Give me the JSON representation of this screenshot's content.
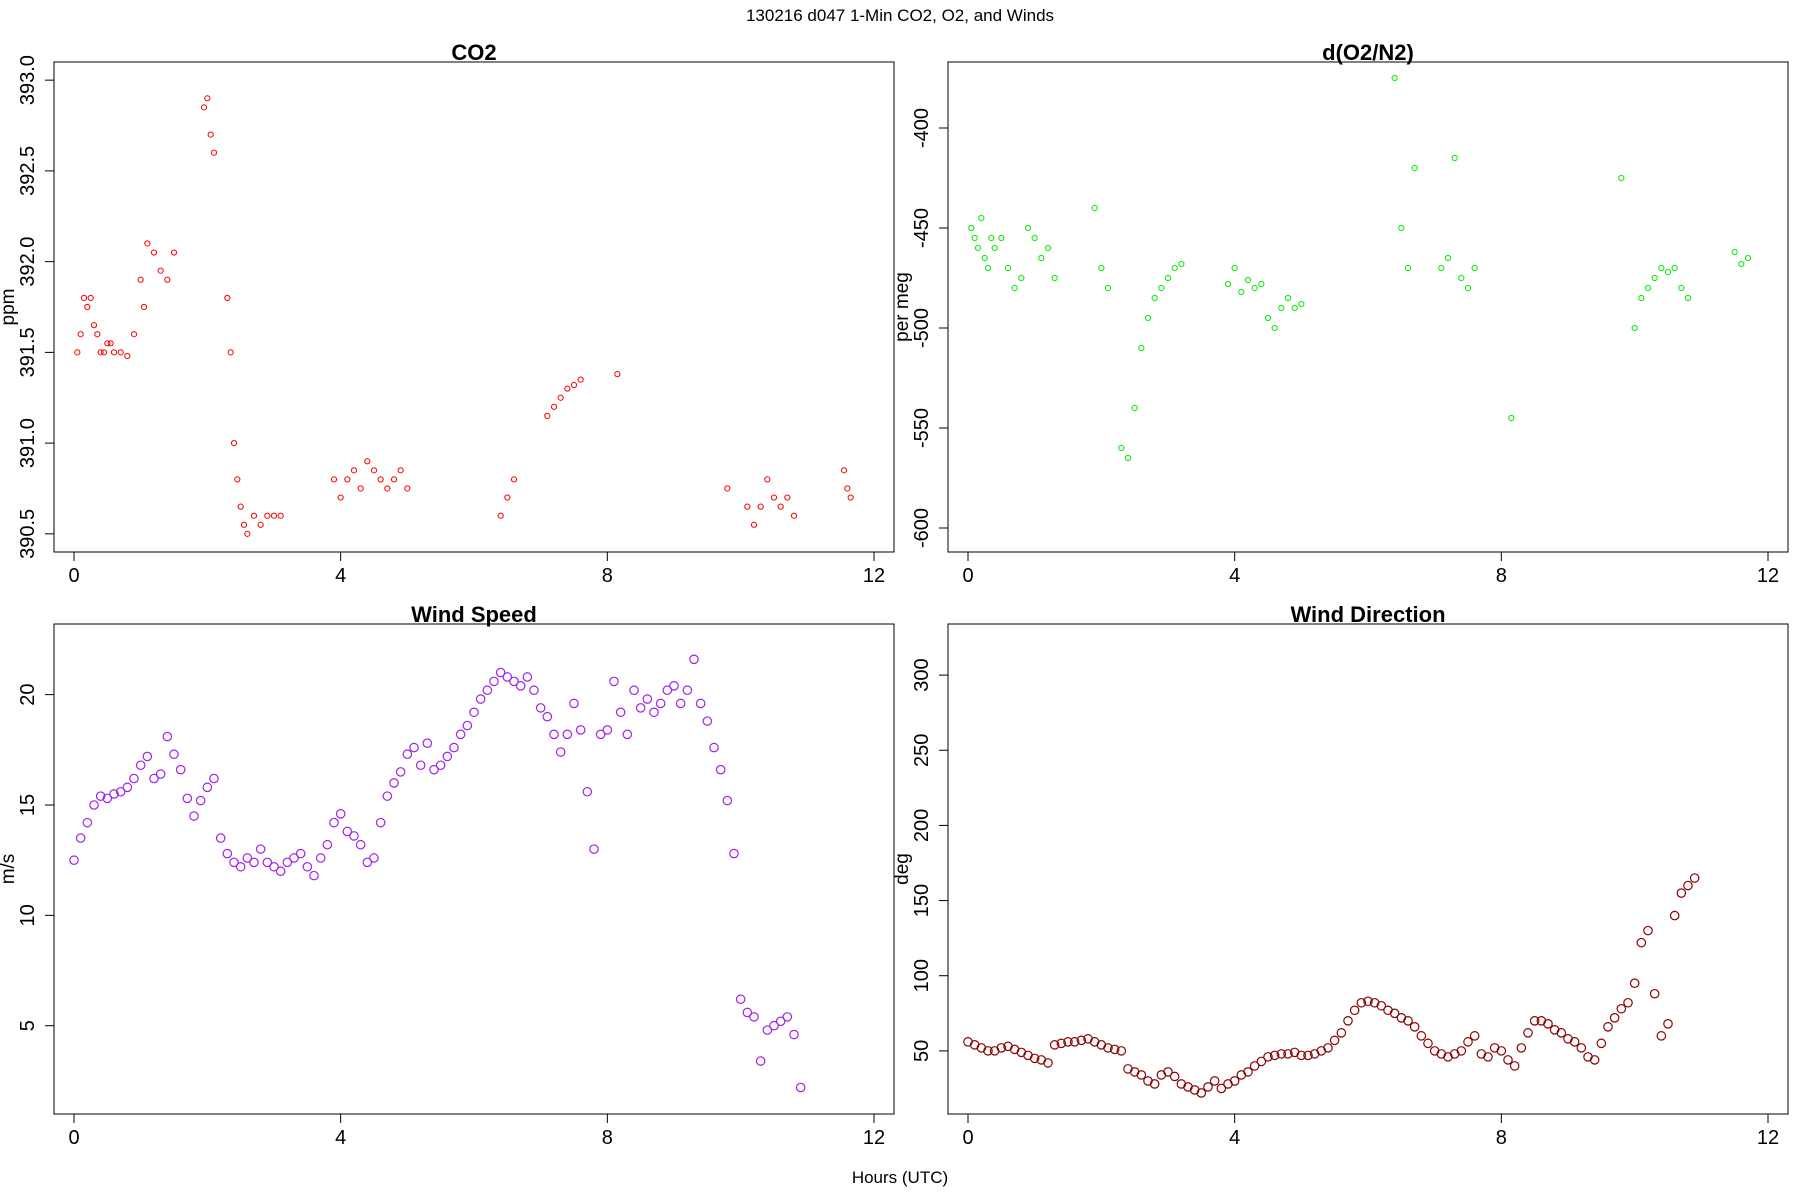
{
  "figure": {
    "suptitle": "130216   d047   1-Min CO2, O2, and Winds",
    "xlabel": "Hours (UTC)"
  },
  "chart_data": [
    {
      "id": "co2",
      "type": "scatter",
      "title": "CO2",
      "ylabel": "ppm",
      "xlabel": "",
      "xlim": [
        -0.3,
        12.3
      ],
      "ylim": [
        390.4,
        393.1
      ],
      "xticks": [
        "0",
        "4",
        "8",
        "12"
      ],
      "yticks": [
        "390.5",
        "391.0",
        "391.5",
        "392.0",
        "392.5",
        "393.0"
      ],
      "marker_color": "#ff0000",
      "x": [
        0.05,
        0.1,
        0.15,
        0.2,
        0.25,
        0.3,
        0.35,
        0.4,
        0.45,
        0.5,
        0.55,
        0.6,
        0.7,
        0.8,
        0.9,
        1.0,
        1.05,
        1.1,
        1.2,
        1.3,
        1.4,
        1.5,
        1.95,
        2.0,
        2.05,
        2.1,
        2.3,
        2.35,
        2.4,
        2.45,
        2.5,
        2.55,
        2.6,
        2.7,
        2.8,
        2.9,
        3.0,
        3.1,
        3.9,
        4.0,
        4.1,
        4.2,
        4.3,
        4.4,
        4.5,
        4.6,
        4.7,
        4.8,
        4.9,
        5.0,
        6.4,
        6.5,
        6.6,
        7.1,
        7.2,
        7.3,
        7.4,
        7.5,
        7.6,
        8.15,
        9.8,
        10.1,
        10.2,
        10.3,
        10.4,
        10.5,
        10.6,
        10.7,
        10.8,
        11.55,
        11.6,
        11.65
      ],
      "y": [
        391.5,
        391.6,
        391.8,
        391.75,
        391.8,
        391.65,
        391.6,
        391.5,
        391.5,
        391.55,
        391.55,
        391.5,
        391.5,
        391.48,
        391.6,
        391.9,
        391.75,
        392.1,
        392.05,
        391.95,
        391.9,
        392.05,
        392.85,
        392.9,
        392.7,
        392.6,
        391.8,
        391.5,
        391.0,
        390.8,
        390.65,
        390.55,
        390.5,
        390.6,
        390.55,
        390.6,
        390.6,
        390.6,
        390.8,
        390.7,
        390.8,
        390.85,
        390.75,
        390.9,
        390.85,
        390.8,
        390.75,
        390.8,
        390.85,
        390.75,
        390.6,
        390.7,
        390.8,
        391.15,
        391.2,
        391.25,
        391.3,
        391.32,
        391.35,
        391.38,
        390.75,
        390.65,
        390.55,
        390.65,
        390.8,
        390.7,
        390.65,
        390.7,
        390.6,
        390.85,
        390.75,
        390.7
      ]
    },
    {
      "id": "o2",
      "type": "scatter",
      "title": "d(O2/N2)",
      "ylabel": "per meg",
      "xlabel": "",
      "xlim": [
        -0.3,
        12.3
      ],
      "ylim": [
        -612,
        -367
      ],
      "xticks": [
        "0",
        "4",
        "8",
        "12"
      ],
      "yticks": [
        "-600",
        "-550",
        "-500",
        "-450",
        "-400"
      ],
      "marker_color": "#00ee00",
      "x": [
        0.05,
        0.1,
        0.15,
        0.2,
        0.25,
        0.3,
        0.35,
        0.4,
        0.5,
        0.6,
        0.7,
        0.8,
        0.9,
        1.0,
        1.1,
        1.2,
        1.3,
        1.9,
        2.0,
        2.1,
        2.3,
        2.4,
        2.5,
        2.6,
        2.7,
        2.8,
        2.9,
        3.0,
        3.1,
        3.2,
        3.9,
        4.0,
        4.1,
        4.2,
        4.3,
        4.4,
        4.5,
        4.6,
        4.7,
        4.8,
        4.9,
        5.0,
        6.4,
        6.5,
        6.6,
        6.7,
        7.1,
        7.2,
        7.3,
        7.4,
        7.5,
        7.6,
        8.15,
        9.8,
        10.0,
        10.1,
        10.2,
        10.3,
        10.4,
        10.5,
        10.6,
        10.7,
        10.8,
        11.5,
        11.6,
        11.7
      ],
      "y": [
        -450,
        -455,
        -460,
        -445,
        -465,
        -470,
        -455,
        -460,
        -455,
        -470,
        -480,
        -475,
        -450,
        -455,
        -465,
        -460,
        -475,
        -440,
        -470,
        -480,
        -560,
        -565,
        -540,
        -510,
        -495,
        -485,
        -480,
        -475,
        -470,
        -468,
        -478,
        -470,
        -482,
        -476,
        -480,
        -478,
        -495,
        -500,
        -490,
        -485,
        -490,
        -488,
        -375,
        -450,
        -470,
        -420,
        -470,
        -465,
        -415,
        -475,
        -480,
        -470,
        -545,
        -425,
        -500,
        -485,
        -480,
        -475,
        -470,
        -472,
        -470,
        -480,
        -485,
        -462,
        -468,
        -465
      ]
    },
    {
      "id": "wind_speed",
      "type": "scatter",
      "title": "Wind Speed",
      "ylabel": "m/s",
      "xlabel": "",
      "xlim": [
        -0.3,
        12.3
      ],
      "ylim": [
        1,
        23.2
      ],
      "xticks": [
        "0",
        "4",
        "8",
        "12"
      ],
      "yticks": [
        "5",
        "10",
        "15",
        "20"
      ],
      "marker_color": "#a020f0",
      "x": [
        0.0,
        0.1,
        0.2,
        0.3,
        0.4,
        0.5,
        0.6,
        0.7,
        0.8,
        0.9,
        1.0,
        1.1,
        1.2,
        1.3,
        1.4,
        1.5,
        1.6,
        1.7,
        1.8,
        1.9,
        2.0,
        2.1,
        2.2,
        2.3,
        2.4,
        2.5,
        2.6,
        2.7,
        2.8,
        2.9,
        3.0,
        3.1,
        3.2,
        3.3,
        3.4,
        3.5,
        3.6,
        3.7,
        3.8,
        3.9,
        4.0,
        4.1,
        4.2,
        4.3,
        4.4,
        4.5,
        4.6,
        4.7,
        4.8,
        4.9,
        5.0,
        5.1,
        5.2,
        5.3,
        5.4,
        5.5,
        5.6,
        5.7,
        5.8,
        5.9,
        6.0,
        6.1,
        6.2,
        6.3,
        6.4,
        6.5,
        6.6,
        6.7,
        6.8,
        6.9,
        7.0,
        7.1,
        7.2,
        7.3,
        7.4,
        7.5,
        7.6,
        7.7,
        7.8,
        7.9,
        8.0,
        8.1,
        8.2,
        8.3,
        8.4,
        8.5,
        8.6,
        8.7,
        8.8,
        8.9,
        9.0,
        9.1,
        9.2,
        9.3,
        9.4,
        9.5,
        9.6,
        9.7,
        9.8,
        9.9,
        10.0,
        10.1,
        10.2,
        10.3,
        10.4,
        10.5,
        10.6,
        10.7,
        10.8,
        10.9
      ],
      "y": [
        12.5,
        13.5,
        14.2,
        15.0,
        15.4,
        15.3,
        15.5,
        15.6,
        15.8,
        16.2,
        16.8,
        17.2,
        16.2,
        16.4,
        18.1,
        17.3,
        16.6,
        15.3,
        14.5,
        15.2,
        15.8,
        16.2,
        13.5,
        12.8,
        12.4,
        12.2,
        12.6,
        12.4,
        13.0,
        12.4,
        12.2,
        12.0,
        12.4,
        12.6,
        12.8,
        12.2,
        11.8,
        12.6,
        13.2,
        14.2,
        14.6,
        13.8,
        13.6,
        13.2,
        12.4,
        12.6,
        14.2,
        15.4,
        16.0,
        16.5,
        17.3,
        17.6,
        16.8,
        17.8,
        16.6,
        16.8,
        17.2,
        17.6,
        18.2,
        18.6,
        19.2,
        19.8,
        20.2,
        20.6,
        21.0,
        20.8,
        20.6,
        20.4,
        20.8,
        20.2,
        19.4,
        19.0,
        18.2,
        17.4,
        18.2,
        19.6,
        18.4,
        15.6,
        13.0,
        18.2,
        18.4,
        20.6,
        19.2,
        18.2,
        20.2,
        19.4,
        19.8,
        19.2,
        19.6,
        20.2,
        20.4,
        19.6,
        20.2,
        21.6,
        19.6,
        18.8,
        17.6,
        16.6,
        15.2,
        12.8,
        6.2,
        5.6,
        5.4,
        3.4,
        4.8,
        5.0,
        5.2,
        5.4,
        4.6,
        2.2
      ]
    },
    {
      "id": "wind_direction",
      "type": "scatter",
      "title": "Wind Direction",
      "ylabel": "deg",
      "xlabel": "",
      "xlim": [
        -0.3,
        12.3
      ],
      "ylim": [
        8,
        334
      ],
      "xticks": [
        "0",
        "4",
        "8",
        "12"
      ],
      "yticks": [
        "50",
        "100",
        "150",
        "200",
        "250",
        "300"
      ],
      "marker_color": "#8b0000",
      "x": [
        0.0,
        0.1,
        0.2,
        0.3,
        0.4,
        0.5,
        0.6,
        0.7,
        0.8,
        0.9,
        1.0,
        1.1,
        1.2,
        1.3,
        1.4,
        1.5,
        1.6,
        1.7,
        1.8,
        1.9,
        2.0,
        2.1,
        2.2,
        2.3,
        2.4,
        2.5,
        2.6,
        2.7,
        2.8,
        2.9,
        3.0,
        3.1,
        3.2,
        3.3,
        3.4,
        3.5,
        3.6,
        3.7,
        3.8,
        3.9,
        4.0,
        4.1,
        4.2,
        4.3,
        4.4,
        4.5,
        4.6,
        4.7,
        4.8,
        4.9,
        5.0,
        5.1,
        5.2,
        5.3,
        5.4,
        5.5,
        5.6,
        5.7,
        5.8,
        5.9,
        6.0,
        6.1,
        6.2,
        6.3,
        6.4,
        6.5,
        6.6,
        6.7,
        6.8,
        6.9,
        7.0,
        7.1,
        7.2,
        7.3,
        7.4,
        7.5,
        7.6,
        7.7,
        7.8,
        7.9,
        8.0,
        8.1,
        8.2,
        8.3,
        8.4,
        8.5,
        8.6,
        8.7,
        8.8,
        8.9,
        9.0,
        9.1,
        9.2,
        9.3,
        9.4,
        9.5,
        9.6,
        9.7,
        9.8,
        9.9,
        10.0,
        10.1,
        10.2,
        10.3,
        10.4,
        10.5,
        10.6,
        10.7,
        10.8,
        10.9
      ],
      "y": [
        56,
        54,
        52,
        50,
        50,
        52,
        53,
        51,
        49,
        47,
        45,
        44,
        42,
        54,
        55,
        56,
        56,
        57,
        58,
        56,
        54,
        52,
        51,
        50,
        38,
        36,
        34,
        30,
        28,
        34,
        36,
        33,
        28,
        26,
        24,
        22,
        26,
        30,
        25,
        28,
        30,
        34,
        36,
        40,
        43,
        46,
        47,
        48,
        48,
        49,
        47,
        47,
        48,
        50,
        52,
        57,
        62,
        70,
        77,
        82,
        83,
        82,
        80,
        77,
        75,
        72,
        70,
        66,
        60,
        55,
        50,
        48,
        46,
        48,
        50,
        56,
        60,
        48,
        46,
        52,
        50,
        44,
        40,
        52,
        62,
        70,
        70,
        68,
        64,
        62,
        58,
        56,
        52,
        46,
        44,
        55,
        66,
        72,
        78,
        82,
        95,
        122,
        130,
        88,
        60,
        68,
        140,
        155,
        160,
        165
      ]
    }
  ]
}
